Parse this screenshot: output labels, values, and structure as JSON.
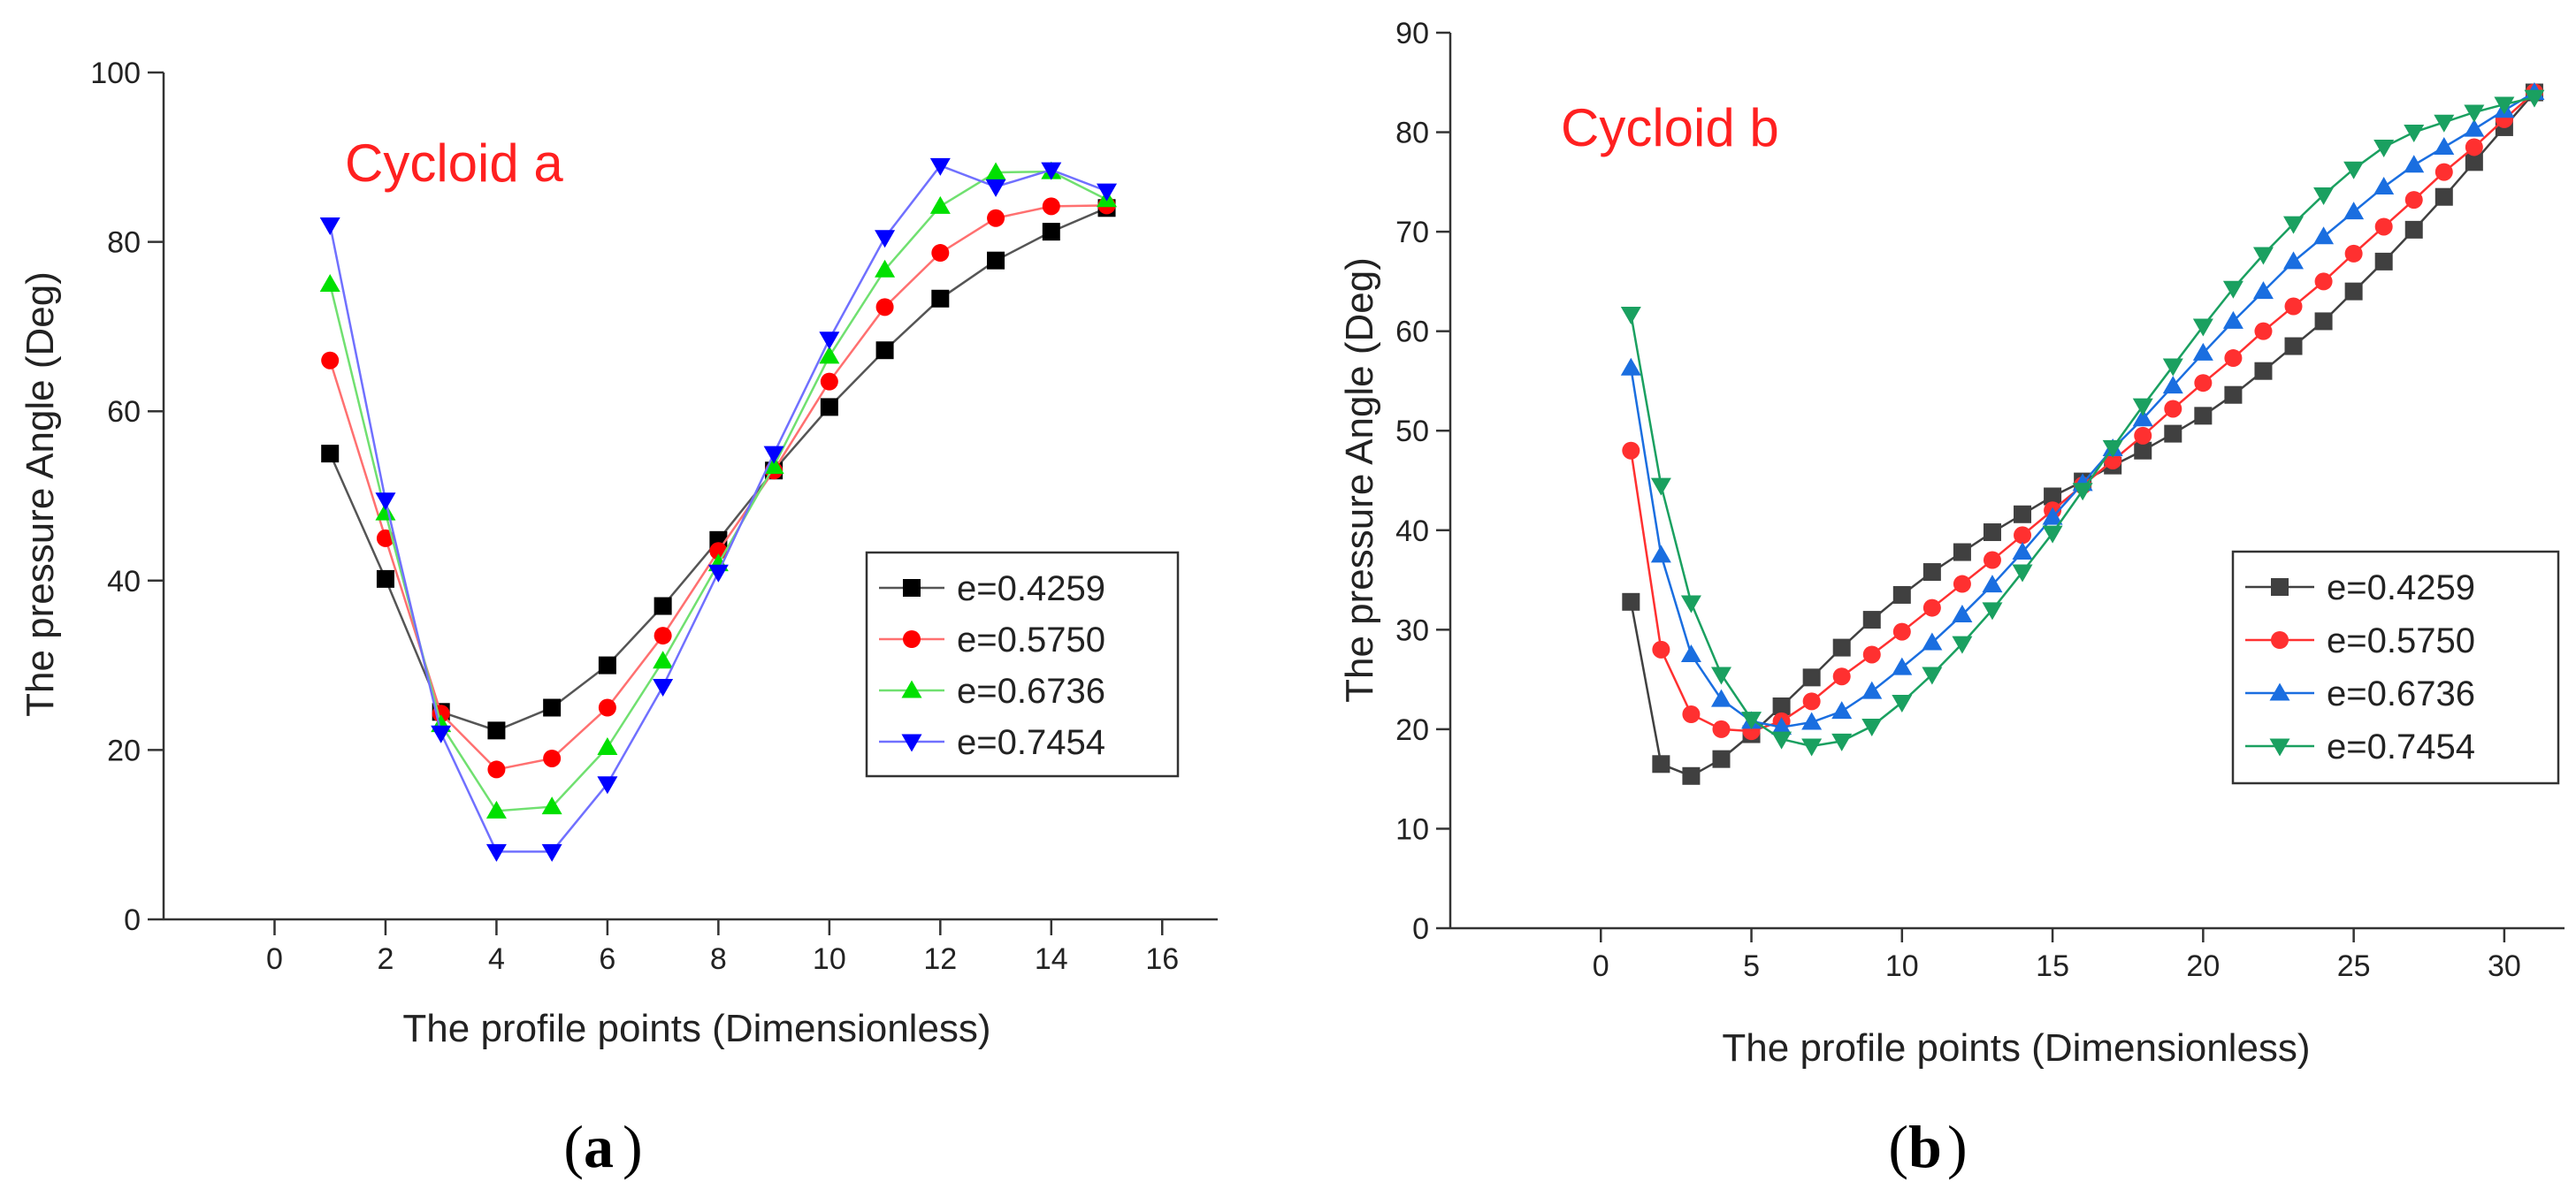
{
  "chart_data": [
    {
      "id": "a",
      "type": "line",
      "title": "Cycloid a",
      "panel_label": "(a)",
      "panel_letter": "a",
      "xlabel": "The profile points (Dimensionless)",
      "ylabel": "The pressure Angle  (Deg)",
      "xlim": [
        -2,
        17
      ],
      "ylim": [
        0,
        100
      ],
      "xticks": [
        0,
        2,
        4,
        6,
        8,
        10,
        12,
        14,
        16
      ],
      "yticks": [
        0,
        20,
        40,
        60,
        80,
        100
      ],
      "grid": false,
      "legend": "right",
      "x": [
        1,
        2,
        3,
        4,
        5,
        6,
        7,
        8,
        9,
        10,
        11,
        12,
        13,
        14,
        15
      ],
      "series": [
        {
          "name": "e=0.4259",
          "color": "#000000",
          "line_color": "#555555",
          "marker": "square",
          "values": [
            55,
            40.2,
            24.5,
            22.3,
            25,
            30,
            37,
            44.8,
            53,
            60.5,
            67.2,
            73.3,
            77.8,
            81.2,
            84
          ]
        },
        {
          "name": "e=0.5750",
          "color": "#ff0000",
          "line_color": "#ff7070",
          "marker": "circle",
          "values": [
            66,
            45,
            24.3,
            17.7,
            19,
            25,
            33.5,
            43.5,
            53,
            63.5,
            72.3,
            78.7,
            82.8,
            84.2,
            84.3
          ]
        },
        {
          "name": "e=0.6736",
          "color": "#00e000",
          "line_color": "#70e070",
          "marker": "triangle-up",
          "values": [
            75,
            48,
            23,
            12.8,
            13.3,
            20.3,
            30.5,
            42,
            53.5,
            66.5,
            76.7,
            84.2,
            88.2,
            88.3,
            85
          ]
        },
        {
          "name": "e=0.7454",
          "color": "#0000ff",
          "line_color": "#7070ff",
          "marker": "triangle-down",
          "values": [
            82,
            49.5,
            22,
            8,
            8,
            16,
            27.5,
            41,
            55,
            68.5,
            80.5,
            89,
            86.5,
            88.5,
            86
          ]
        }
      ]
    },
    {
      "id": "b",
      "type": "line",
      "title": "Cycloid b",
      "panel_label": "(b)",
      "panel_letter": "b",
      "xlabel": "The profile points (Dimensionless)",
      "ylabel": "The pressure Angle (Deg)",
      "xlim": [
        -5,
        32
      ],
      "ylim": [
        0,
        90
      ],
      "xticks": [
        0,
        5,
        10,
        15,
        20,
        25,
        30
      ],
      "yticks": [
        0,
        10,
        20,
        30,
        40,
        50,
        60,
        70,
        80,
        90
      ],
      "grid": false,
      "legend": "right",
      "x": [
        1,
        2,
        3,
        4,
        5,
        6,
        7,
        8,
        9,
        10,
        11,
        12,
        13,
        14,
        15,
        16,
        17,
        18,
        19,
        20,
        21,
        22,
        23,
        24,
        25,
        26,
        27,
        28,
        29,
        30,
        31
      ],
      "series": [
        {
          "name": "e=0.4259",
          "color": "#404040",
          "line_color": "#404040",
          "marker": "square",
          "values": [
            32.8,
            16.5,
            15.3,
            17,
            19.5,
            22.3,
            25.2,
            28.2,
            31,
            33.5,
            35.8,
            37.8,
            39.8,
            41.6,
            43.4,
            44.9,
            46.5,
            48,
            49.7,
            51.5,
            53.6,
            56,
            58.5,
            61,
            64,
            67,
            70.2,
            73.5,
            77,
            80.5,
            84
          ]
        },
        {
          "name": "e=0.5750",
          "color": "#ff3030",
          "line_color": "#ff3030",
          "marker": "circle",
          "values": [
            48,
            28,
            21.5,
            20,
            19.8,
            20.8,
            22.8,
            25.3,
            27.5,
            29.8,
            32.2,
            34.6,
            37,
            39.5,
            42,
            44.5,
            47,
            49.5,
            52.2,
            54.8,
            57.3,
            60,
            62.5,
            65,
            67.8,
            70.5,
            73.2,
            76,
            78.5,
            81.3,
            84
          ]
        },
        {
          "name": "e=0.6736",
          "color": "#1a6ee0",
          "line_color": "#1a6ee0",
          "marker": "triangle-up",
          "values": [
            56.3,
            37.5,
            27.5,
            23,
            20.8,
            20.2,
            20.7,
            21.8,
            23.8,
            26.2,
            28.7,
            31.5,
            34.5,
            37.8,
            41.3,
            44.7,
            48.2,
            51.2,
            54.5,
            57.8,
            61,
            64,
            67,
            69.5,
            72,
            74.5,
            76.7,
            78.5,
            80.3,
            82.2,
            84
          ]
        },
        {
          "name": "e=0.7454",
          "color": "#1aa060",
          "line_color": "#1aa060",
          "marker": "triangle-down",
          "values": [
            61.7,
            44.5,
            32.7,
            25.5,
            21,
            19,
            18.3,
            18.8,
            20.3,
            22.7,
            25.5,
            28.6,
            32,
            35.8,
            39.7,
            44,
            48.3,
            52.5,
            56.5,
            60.5,
            64.3,
            67.7,
            70.8,
            73.7,
            76.3,
            78.5,
            80,
            81,
            82,
            82.8,
            83.5
          ]
        }
      ]
    }
  ]
}
